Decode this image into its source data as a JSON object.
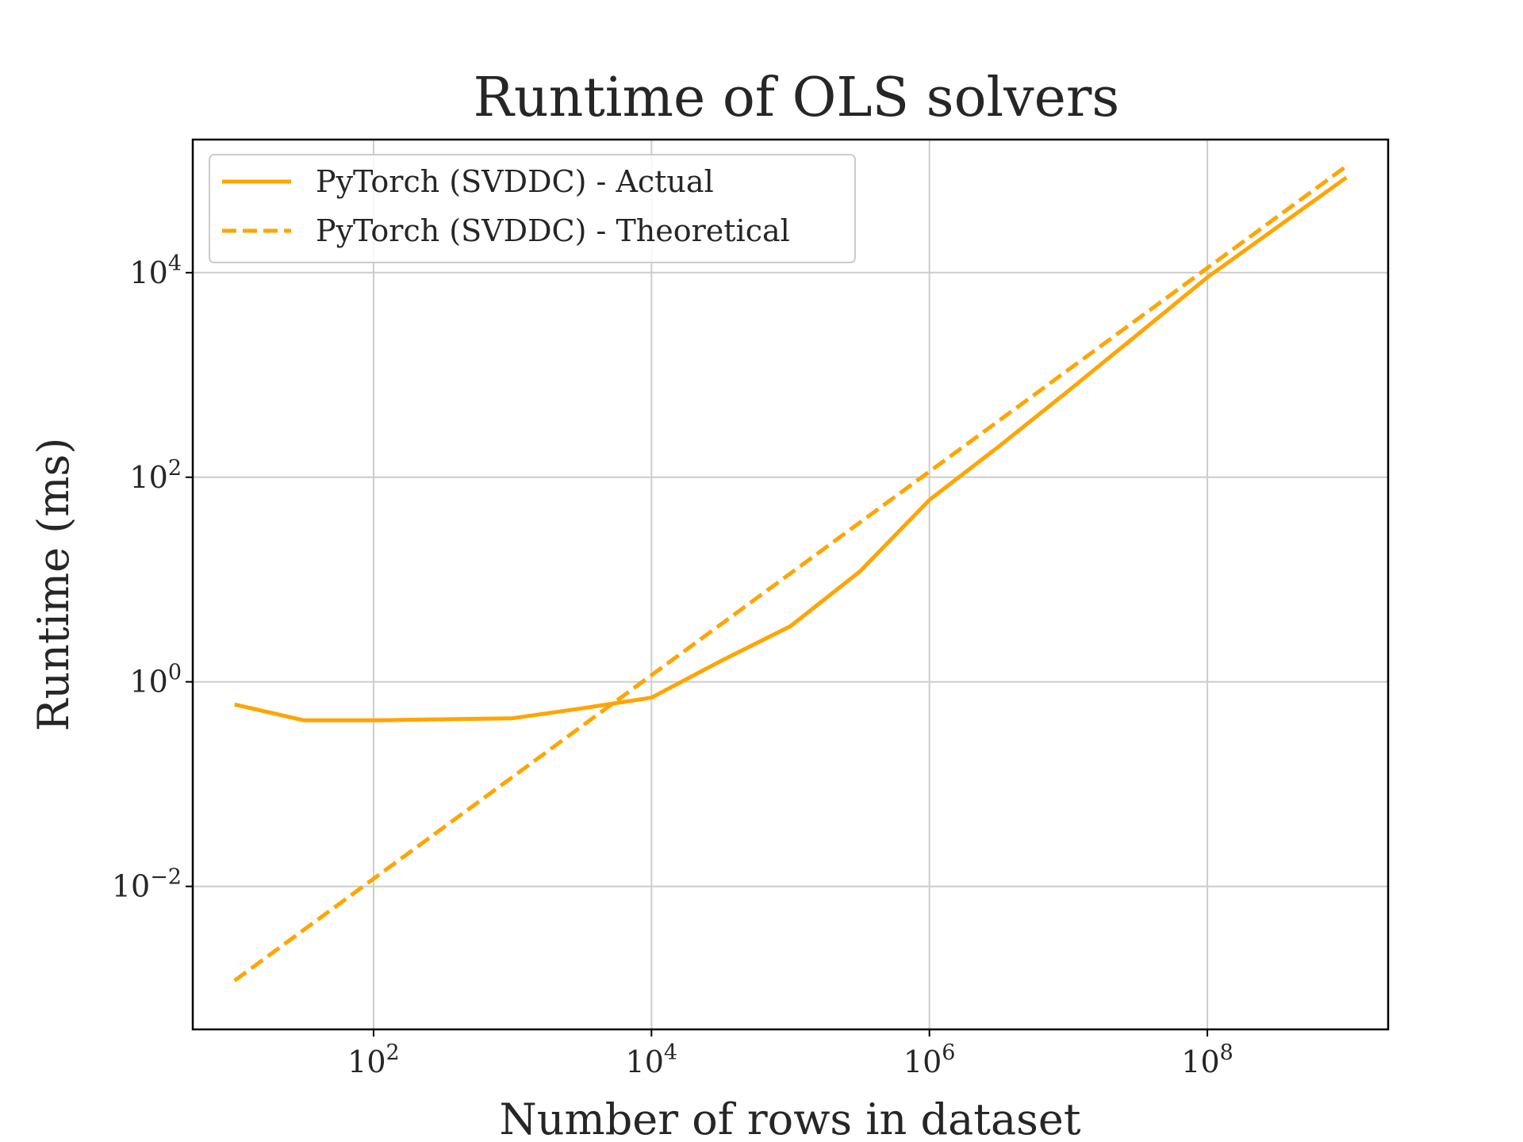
{
  "chart_data": {
    "type": "line",
    "title": "Runtime of OLS solvers",
    "xlabel": "Number of rows in dataset",
    "ylabel": "Runtime (ms)",
    "x_scale": "log",
    "y_scale": "log",
    "xlim": [
      5.0,
      2000000000.0
    ],
    "ylim": [
      0.0004,
      200000.0
    ],
    "x_ticks": [
      {
        "value": 100,
        "base": "10",
        "exp": "2"
      },
      {
        "value": 10000,
        "base": "10",
        "exp": "4"
      },
      {
        "value": 1000000,
        "base": "10",
        "exp": "6"
      },
      {
        "value": 100000000,
        "base": "10",
        "exp": "8"
      }
    ],
    "y_ticks": [
      {
        "value": 0.01,
        "base": "10",
        "exp": "−2"
      },
      {
        "value": 1,
        "base": "10",
        "exp": "0"
      },
      {
        "value": 100,
        "base": "10",
        "exp": "2"
      },
      {
        "value": 10000,
        "base": "10",
        "exp": "4"
      }
    ],
    "grid": true,
    "legend_position": "top-left",
    "series": [
      {
        "name": "PyTorch (SVDDC) - Actual",
        "style": "solid",
        "color": "#FFA500",
        "x": [
          10,
          31.6,
          100,
          1000,
          3162,
          10000,
          31623,
          100000,
          316228,
          1000000,
          3162278,
          10000000,
          31622777,
          100000000,
          1000000000
        ],
        "y": [
          0.6,
          0.42,
          0.42,
          0.44,
          0.55,
          0.7,
          1.6,
          3.5,
          12,
          60,
          200,
          700,
          2500,
          9000,
          85000
        ]
      },
      {
        "name": "PyTorch (SVDDC) - Theoretical",
        "style": "dashed",
        "color": "#FFA500",
        "x": [
          10,
          1000000000
        ],
        "y": [
          0.0012,
          110000
        ]
      }
    ]
  }
}
